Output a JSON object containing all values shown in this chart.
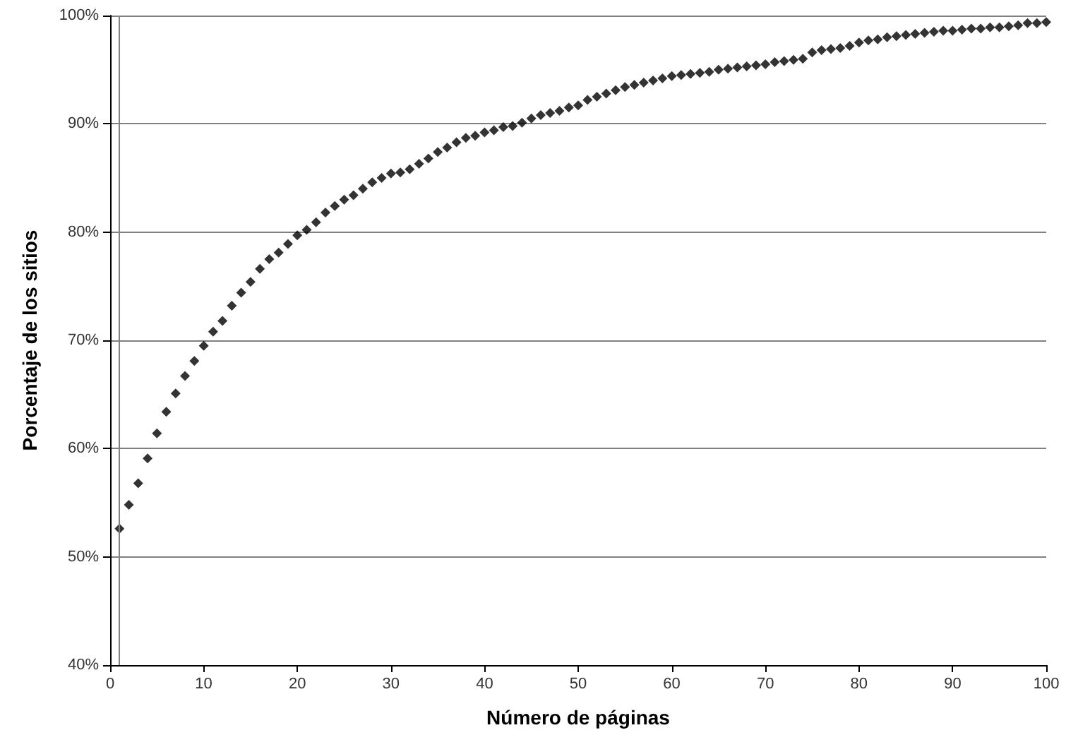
{
  "chart_data": {
    "type": "scatter",
    "xlabel": "Número de páginas",
    "ylabel": "Porcentaje de los sitios",
    "x": [
      1,
      2,
      3,
      4,
      5,
      6,
      7,
      8,
      9,
      10,
      11,
      12,
      13,
      14,
      15,
      16,
      17,
      18,
      19,
      20,
      21,
      22,
      23,
      24,
      25,
      26,
      27,
      28,
      29,
      30,
      31,
      32,
      33,
      34,
      35,
      36,
      37,
      38,
      39,
      40,
      41,
      42,
      43,
      44,
      45,
      46,
      47,
      48,
      49,
      50,
      51,
      52,
      53,
      54,
      55,
      56,
      57,
      58,
      59,
      60,
      61,
      62,
      63,
      64,
      65,
      66,
      67,
      68,
      69,
      70,
      71,
      72,
      73,
      74,
      75,
      76,
      77,
      78,
      79,
      80,
      81,
      82,
      83,
      84,
      85,
      86,
      87,
      88,
      89,
      90,
      91,
      92,
      93,
      94,
      95,
      96,
      97,
      98,
      99,
      100
    ],
    "series": [
      {
        "color": "#000000",
        "values": [
          52.6,
          54.8,
          56.8,
          59.1,
          61.4,
          63.4,
          65.1,
          66.7,
          68.1,
          69.5,
          70.8,
          71.8,
          73.2,
          74.4,
          75.4,
          76.6,
          77.5,
          78.1,
          78.9,
          79.7,
          80.2,
          80.9,
          81.8,
          82.4,
          83.0,
          83.4,
          84.0,
          84.6,
          85.0,
          85.4,
          85.5,
          85.8,
          86.3,
          86.8,
          87.4,
          87.8,
          88.3,
          88.7,
          88.9,
          89.2,
          89.4,
          89.7,
          89.8,
          90.1,
          90.5,
          90.8,
          91.0,
          91.2,
          91.5,
          91.7,
          92.2,
          92.5,
          92.8,
          93.1,
          93.4,
          93.6,
          93.8,
          94.0,
          94.2,
          94.4,
          94.5,
          94.6,
          94.7,
          94.8,
          95.0,
          95.1,
          95.2,
          95.3,
          95.4,
          95.5,
          95.7,
          95.8,
          95.9,
          96.0,
          96.6,
          96.8,
          96.9,
          97.0,
          97.2,
          97.5,
          97.7,
          97.8,
          98.0,
          98.1,
          98.2,
          98.3,
          98.4,
          98.5,
          98.6,
          98.6,
          98.7,
          98.8,
          98.8,
          98.9,
          98.9,
          99.0,
          99.1,
          99.3,
          99.3,
          99.4
        ]
      }
    ],
    "xlim": [
      0,
      100
    ],
    "xticks": [
      0,
      10,
      20,
      30,
      40,
      50,
      60,
      70,
      80,
      90,
      100
    ],
    "ylim": [
      40,
      100
    ],
    "yticks": [
      {
        "value": 40,
        "label": "40%"
      },
      {
        "value": 50,
        "label": "50%"
      },
      {
        "value": 60,
        "label": "60%"
      },
      {
        "value": 70,
        "label": "70%"
      },
      {
        "value": 80,
        "label": "80%"
      },
      {
        "value": 90,
        "label": "90%"
      },
      {
        "value": 100,
        "label": "100%"
      }
    ],
    "ref_lines": [
      {
        "axis": "x",
        "value": 1,
        "label": null,
        "color": "#808080"
      }
    ],
    "grid": "y",
    "marker": "diamond"
  }
}
